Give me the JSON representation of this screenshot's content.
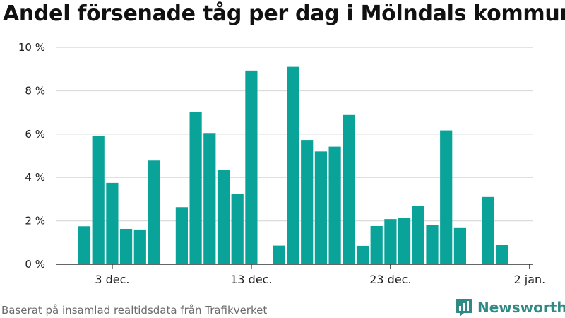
{
  "title": "Andel försenade tåg per dag i Mölndals kommun",
  "source": "Baserat på insamlad realtidsdata från Trafikverket",
  "brand": "Newsworthy",
  "colors": {
    "bar": "#0aa39a",
    "grid": "#dcdcdc",
    "axis": "#333333",
    "brand": "#2f8a85"
  },
  "chart_data": {
    "type": "bar",
    "x_axis": {
      "type": "date",
      "start": "2019-12-01",
      "end": "2020-01-02"
    },
    "y_axis": {
      "ylim": [
        0,
        10
      ],
      "ticks": [
        0,
        2,
        4,
        6,
        8,
        10
      ],
      "tick_labels": [
        "0 %",
        "2 %",
        "4 %",
        "6 %",
        "8 %",
        "10 %"
      ],
      "unit": "%"
    },
    "x_ticks": [
      {
        "date": "2019-12-03",
        "label": "3 dec."
      },
      {
        "date": "2019-12-13",
        "label": "13 dec."
      },
      {
        "date": "2019-12-23",
        "label": "23 dec."
      },
      {
        "date": "2020-01-02",
        "label": "2 jan."
      }
    ],
    "grid": true,
    "data": [
      {
        "date": "2019-12-01",
        "value": 1.75
      },
      {
        "date": "2019-12-02",
        "value": 5.9
      },
      {
        "date": "2019-12-03",
        "value": 3.75
      },
      {
        "date": "2019-12-04",
        "value": 1.63
      },
      {
        "date": "2019-12-05",
        "value": 1.6
      },
      {
        "date": "2019-12-06",
        "value": 4.78
      },
      {
        "date": "2019-12-08",
        "value": 2.63
      },
      {
        "date": "2019-12-09",
        "value": 7.03
      },
      {
        "date": "2019-12-10",
        "value": 6.05
      },
      {
        "date": "2019-12-11",
        "value": 4.36
      },
      {
        "date": "2019-12-12",
        "value": 3.23
      },
      {
        "date": "2019-12-13",
        "value": 8.93
      },
      {
        "date": "2019-12-15",
        "value": 0.86
      },
      {
        "date": "2019-12-16",
        "value": 9.1
      },
      {
        "date": "2019-12-17",
        "value": 5.73
      },
      {
        "date": "2019-12-18",
        "value": 5.2
      },
      {
        "date": "2019-12-19",
        "value": 5.42
      },
      {
        "date": "2019-12-20",
        "value": 6.88
      },
      {
        "date": "2019-12-21",
        "value": 0.85
      },
      {
        "date": "2019-12-22",
        "value": 1.76
      },
      {
        "date": "2019-12-23",
        "value": 2.08
      },
      {
        "date": "2019-12-24",
        "value": 2.15
      },
      {
        "date": "2019-12-25",
        "value": 2.7
      },
      {
        "date": "2019-12-26",
        "value": 1.8
      },
      {
        "date": "2019-12-27",
        "value": 6.17
      },
      {
        "date": "2019-12-28",
        "value": 1.7
      },
      {
        "date": "2019-12-30",
        "value": 3.1
      },
      {
        "date": "2019-12-31",
        "value": 0.9
      }
    ]
  }
}
